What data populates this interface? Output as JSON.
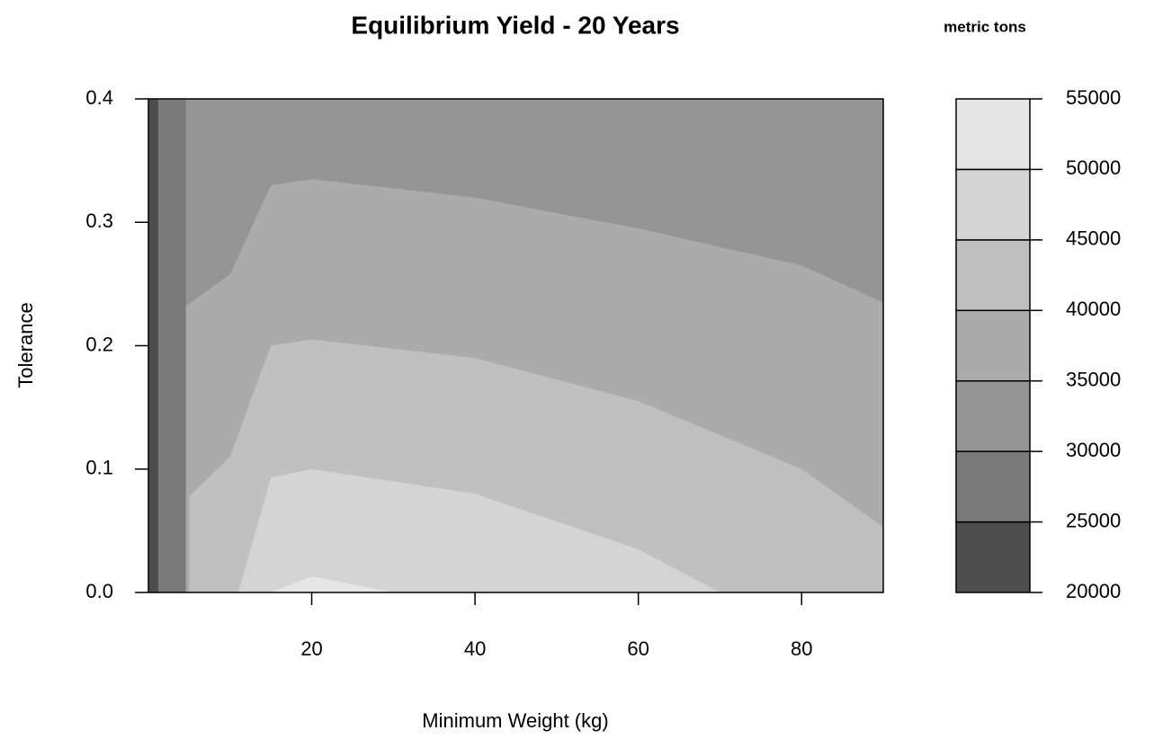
{
  "chart_data": {
    "type": "filled-contour",
    "title": "Equilibrium Yield  -   20 Years",
    "legend_title": "metric tons",
    "x_label": "Minimum Weight (kg)",
    "y_label": "Tolerance",
    "xlim": [
      0,
      90
    ],
    "ylim": [
      0,
      0.4
    ],
    "xticks": [
      20,
      40,
      60,
      80
    ],
    "yticks": [
      {
        "value": 0,
        "label": "0.0"
      },
      0.1,
      0.2,
      0.3,
      0.4
    ],
    "levels": [
      20000,
      25000,
      30000,
      35000,
      40000,
      45000,
      50000,
      55000
    ],
    "colors": [
      "#4d4d4d",
      "#7a7a7a",
      "#959595",
      "#ababab",
      "#c0c0c0",
      "#d4d4d4",
      "#e6e6e6"
    ],
    "contours": [
      {
        "level": 25000,
        "x": [
          1.2,
          1.2
        ],
        "y": [
          0,
          0.4
        ]
      },
      {
        "level": 30000,
        "x": [
          4.6,
          4.6
        ],
        "y": [
          0,
          0.4
        ]
      },
      {
        "level": 35000,
        "x": [
          4.6,
          4.6,
          10,
          15,
          20,
          40,
          60,
          80,
          90
        ],
        "y": [
          0,
          0.232,
          0.258,
          0.33,
          0.335,
          0.32,
          0.295,
          0.265,
          0.235
        ]
      },
      {
        "level": 40000,
        "x": [
          5,
          5,
          10,
          15,
          20,
          40,
          60,
          80,
          90
        ],
        "y": [
          0,
          0.078,
          0.11,
          0.2,
          0.205,
          0.19,
          0.155,
          0.1,
          0.053
        ]
      },
      {
        "level": 45000,
        "x": [
          11,
          15,
          20,
          40,
          60,
          70
        ],
        "y": [
          0,
          0.093,
          0.1,
          0.08,
          0.035,
          0
        ]
      },
      {
        "level": 50000,
        "x": [
          15,
          20,
          30
        ],
        "y": [
          0,
          0.013,
          0
        ]
      }
    ]
  }
}
